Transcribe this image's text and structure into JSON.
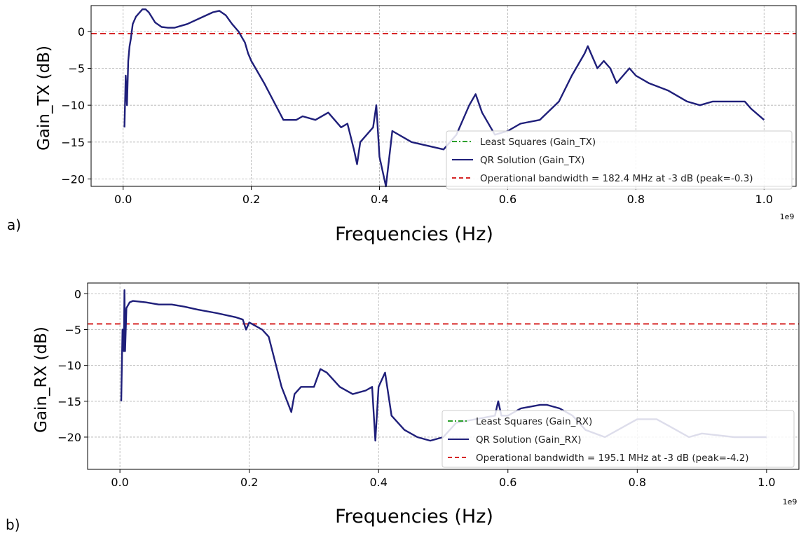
{
  "panel_labels": [
    "a)",
    "b)"
  ],
  "colors": {
    "least_squares": "#2ca02c",
    "qr": "#1f1f7a",
    "bandwidth": "#d62728",
    "grid": "#b0b0b0"
  },
  "chart_data": [
    {
      "type": "line",
      "xlabel": "Frequencies (Hz)",
      "ylabel": "Gain_TX (dB)",
      "x_multiplier": "1e9",
      "xlim": [
        -0.05,
        1.05
      ],
      "ylim": [
        -21,
        3.5
      ],
      "xticks": [
        0.0,
        0.2,
        0.4,
        0.6,
        0.8,
        1.0
      ],
      "xtick_labels": [
        "0.0",
        "0.2",
        "0.4",
        "0.6",
        "0.8",
        "1.0"
      ],
      "yticks": [
        0,
        -5,
        -10,
        -15,
        -20
      ],
      "ytick_labels": [
        "0",
        "−5",
        "−10",
        "−15",
        "−20"
      ],
      "grid": true,
      "legend_position": "lower right",
      "hline": {
        "y": -0.3
      },
      "series": [
        {
          "name": "Least Squares (Gain_TX)",
          "style": "dashdot",
          "x": [],
          "y": []
        },
        {
          "name": "QR Solution (Gain_TX)",
          "style": "solid",
          "x": [
            0.002,
            0.004,
            0.006,
            0.008,
            0.01,
            0.012,
            0.015,
            0.02,
            0.025,
            0.03,
            0.035,
            0.04,
            0.05,
            0.06,
            0.07,
            0.08,
            0.1,
            0.12,
            0.14,
            0.15,
            0.16,
            0.17,
            0.18,
            0.19,
            0.195,
            0.2,
            0.22,
            0.25,
            0.27,
            0.28,
            0.3,
            0.32,
            0.34,
            0.35,
            0.36,
            0.365,
            0.37,
            0.38,
            0.39,
            0.395,
            0.4,
            0.41,
            0.42,
            0.45,
            0.5,
            0.52,
            0.54,
            0.55,
            0.56,
            0.58,
            0.6,
            0.62,
            0.65,
            0.68,
            0.7,
            0.72,
            0.725,
            0.73,
            0.74,
            0.75,
            0.76,
            0.77,
            0.78,
            0.79,
            0.8,
            0.82,
            0.85,
            0.88,
            0.9,
            0.92,
            0.95,
            0.97,
            0.98,
            1.0
          ],
          "y": [
            -13,
            -6,
            -10,
            -4,
            -2,
            -1,
            1,
            2,
            2.5,
            3,
            3,
            2.6,
            1.2,
            0.6,
            0.5,
            0.5,
            1.0,
            1.8,
            2.6,
            2.8,
            2.2,
            1.0,
            0.0,
            -1.5,
            -3,
            -4,
            -7,
            -12,
            -12,
            -11.5,
            -12,
            -11,
            -13,
            -12.5,
            -16,
            -18,
            -15,
            -14,
            -13,
            -10,
            -17,
            -21,
            -13.5,
            -15,
            -16,
            -14,
            -10,
            -8.5,
            -11,
            -14,
            -13.5,
            -12.5,
            -12,
            -9.5,
            -6,
            -3,
            -2,
            -3,
            -5,
            -4,
            -5,
            -7,
            -6,
            -5,
            -6,
            -7,
            -8,
            -9.5,
            -10,
            -9.5,
            -9.5,
            -9.5,
            -10.5,
            -12
          ]
        },
        {
          "name": "Operational bandwidth = 182.4 MHz at -3 dB (peak=-0.3)",
          "style": "dashed",
          "x": [],
          "y": []
        }
      ]
    },
    {
      "type": "line",
      "xlabel": "Frequencies (Hz)",
      "ylabel": "Gain_RX (dB)",
      "x_multiplier": "1e9",
      "xlim": [
        -0.05,
        1.05
      ],
      "ylim": [
        -24.5,
        1.5
      ],
      "xticks": [
        0.0,
        0.2,
        0.4,
        0.6,
        0.8,
        1.0
      ],
      "xtick_labels": [
        "0.0",
        "0.2",
        "0.4",
        "0.6",
        "0.8",
        "1.0"
      ],
      "yticks": [
        0,
        -5,
        -10,
        -15,
        -20
      ],
      "ytick_labels": [
        "0",
        "−5",
        "−10",
        "−15",
        "−20"
      ],
      "grid": true,
      "legend_position": "lower right",
      "hline": {
        "y": -4.2
      },
      "series": [
        {
          "name": "Least Squares (Gain_RX)",
          "style": "dashdot",
          "x": [],
          "y": []
        },
        {
          "name": "QR Solution (Gain_RX)",
          "style": "solid",
          "x": [
            0.002,
            0.004,
            0.006,
            0.007,
            0.008,
            0.01,
            0.015,
            0.02,
            0.04,
            0.06,
            0.08,
            0.1,
            0.12,
            0.15,
            0.18,
            0.19,
            0.195,
            0.2,
            0.22,
            0.23,
            0.25,
            0.265,
            0.27,
            0.28,
            0.3,
            0.31,
            0.32,
            0.34,
            0.36,
            0.38,
            0.39,
            0.395,
            0.4,
            0.41,
            0.42,
            0.44,
            0.46,
            0.48,
            0.5,
            0.52,
            0.55,
            0.58,
            0.585,
            0.59,
            0.6,
            0.62,
            0.65,
            0.66,
            0.68,
            0.7,
            0.72,
            0.75,
            0.78,
            0.8,
            0.83,
            0.85,
            0.88,
            0.9,
            0.95,
            1.0
          ],
          "y": [
            -15,
            -5,
            -8,
            0.5,
            -8,
            -2,
            -1.2,
            -1,
            -1.2,
            -1.5,
            -1.5,
            -1.8,
            -2.2,
            -2.7,
            -3.3,
            -3.6,
            -5,
            -4,
            -5,
            -6,
            -13,
            -16.5,
            -14,
            -13,
            -13,
            -10.5,
            -11,
            -13,
            -14,
            -13.5,
            -13,
            -20.5,
            -13,
            -11,
            -17,
            -19,
            -20,
            -20.5,
            -20,
            -18,
            -17.5,
            -17,
            -15,
            -17,
            -17,
            -16,
            -15.5,
            -15.5,
            -16,
            -17,
            -19,
            -20,
            -18.5,
            -17.5,
            -17.5,
            -18.5,
            -20,
            -19.5,
            -20,
            -20
          ]
        },
        {
          "name": "Operational bandwidth = 195.1 MHz at -3 dB (peak=-4.2)",
          "style": "dashed",
          "x": [],
          "y": []
        }
      ]
    }
  ]
}
